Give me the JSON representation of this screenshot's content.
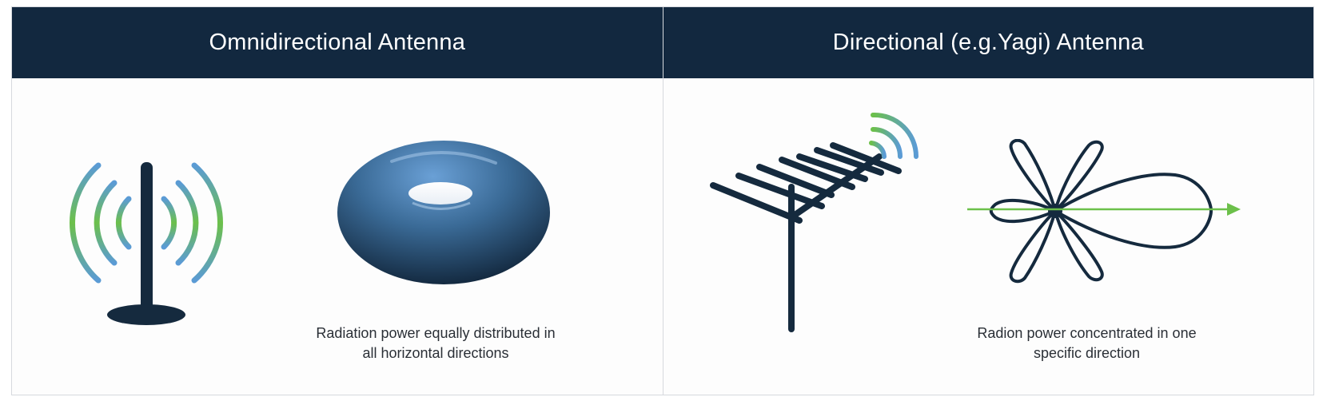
{
  "panels": {
    "left": {
      "title": "Omnidirectional Antenna",
      "caption_line1": "Radiation power equally distributed in",
      "caption_line2": "all horizontal directions"
    },
    "right": {
      "title": "Directional (e.g.Yagi) Antenna",
      "caption_line1": "Radion power concentrated in one",
      "caption_line2": "specific direction"
    }
  },
  "icons": {
    "omni": "omnidirectional-antenna-icon",
    "donut": "toroidal-radiation-pattern-icon",
    "yagi": "yagi-antenna-icon",
    "lobes": "directional-radiation-pattern-icon"
  },
  "colors": {
    "header_bg": "#12283f",
    "antenna": "#152a3e",
    "wave_green": "#6cc04a",
    "wave_blue": "#5b9bd5",
    "arrow_green": "#6cc04a"
  }
}
